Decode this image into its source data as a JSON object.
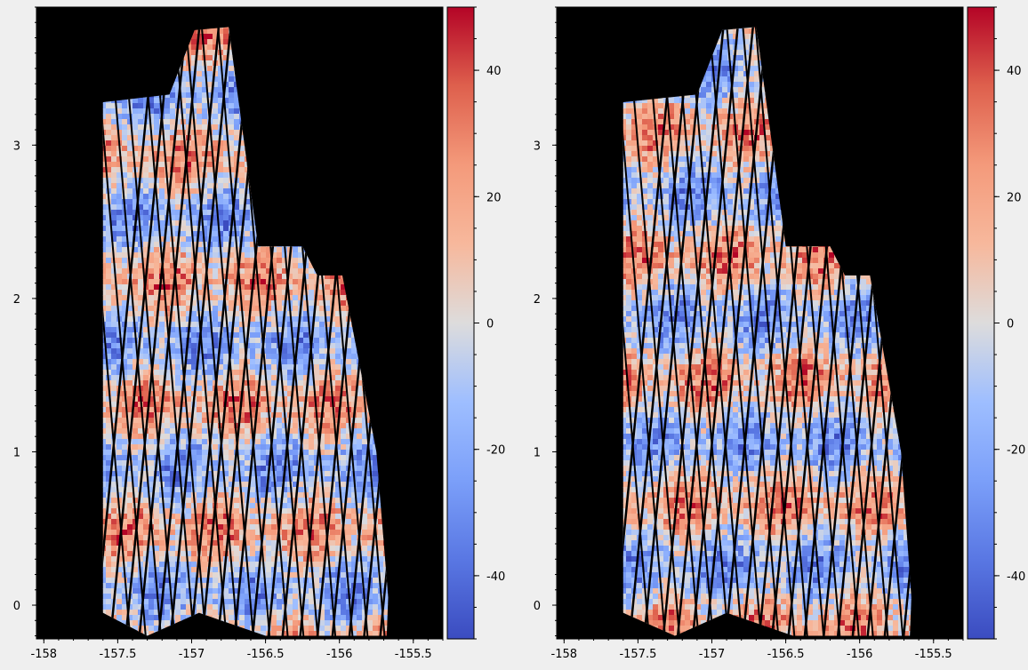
{
  "chart_data": [
    {
      "type": "heatmap",
      "title": "",
      "xlabel": "",
      "ylabel": "",
      "xlim": [
        -158.05,
        -155.3
      ],
      "ylim": [
        -0.22,
        3.9
      ],
      "xticks": [
        -158,
        -157.5,
        -157,
        -156.5,
        -156,
        -155.5
      ],
      "xtick_labels": [
        "-158",
        "-157.5",
        "-157",
        "-156.5",
        "-156",
        "-155.5"
      ],
      "yticks": [
        0,
        1,
        2,
        3
      ],
      "ytick_labels": [
        "0",
        "1",
        "2",
        "3"
      ],
      "background": "#000000",
      "colormap": "coolwarm",
      "colorbar": {
        "vmin": -50,
        "vmax": 50,
        "ticks": [
          -40,
          -20,
          0,
          20,
          40
        ],
        "tick_labels": [
          "-40",
          "-20",
          "0",
          "20",
          "40"
        ]
      },
      "swath_outline": [
        [
          -157.6,
          3.28
        ],
        [
          -157.15,
          3.33
        ],
        [
          -156.98,
          3.75
        ],
        [
          -156.75,
          3.77
        ],
        [
          -156.55,
          2.34
        ],
        [
          -156.25,
          2.34
        ],
        [
          -156.15,
          2.15
        ],
        [
          -155.98,
          2.15
        ],
        [
          -155.75,
          1.0
        ],
        [
          -155.67,
          0.05
        ],
        [
          -155.68,
          -0.2
        ],
        [
          -156.1,
          -0.2
        ],
        [
          -156.5,
          -0.2
        ],
        [
          -156.95,
          -0.05
        ],
        [
          -157.3,
          -0.2
        ],
        [
          -157.6,
          -0.05
        ]
      ]
    },
    {
      "type": "heatmap",
      "title": "",
      "xlabel": "",
      "ylabel": "",
      "xlim": [
        -158.05,
        -155.3
      ],
      "ylim": [
        -0.22,
        3.9
      ],
      "xticks": [
        -158,
        -157.5,
        -157,
        -156.5,
        -156,
        -155.5
      ],
      "xtick_labels": [
        "-158",
        "-157.5",
        "-157",
        "-156.5",
        "-156",
        "-155.5"
      ],
      "yticks": [
        0,
        1,
        2,
        3
      ],
      "ytick_labels": [
        "0",
        "1",
        "2",
        "3"
      ],
      "background": "#000000",
      "colormap": "coolwarm",
      "colorbar": {
        "vmin": -50,
        "vmax": 50,
        "ticks": [
          -40,
          -20,
          0,
          20,
          40
        ],
        "tick_labels": [
          "-40",
          "-20",
          "0",
          "20",
          "40"
        ]
      },
      "swath_outline": [
        [
          -157.6,
          3.28
        ],
        [
          -157.1,
          3.33
        ],
        [
          -156.93,
          3.75
        ],
        [
          -156.7,
          3.77
        ],
        [
          -156.5,
          2.34
        ],
        [
          -156.2,
          2.34
        ],
        [
          -156.1,
          2.15
        ],
        [
          -155.93,
          2.15
        ],
        [
          -155.72,
          1.0
        ],
        [
          -155.65,
          0.05
        ],
        [
          -155.66,
          -0.2
        ],
        [
          -156.05,
          -0.2
        ],
        [
          -156.45,
          -0.2
        ],
        [
          -156.9,
          -0.05
        ],
        [
          -157.25,
          -0.2
        ],
        [
          -157.6,
          -0.05
        ]
      ]
    }
  ]
}
